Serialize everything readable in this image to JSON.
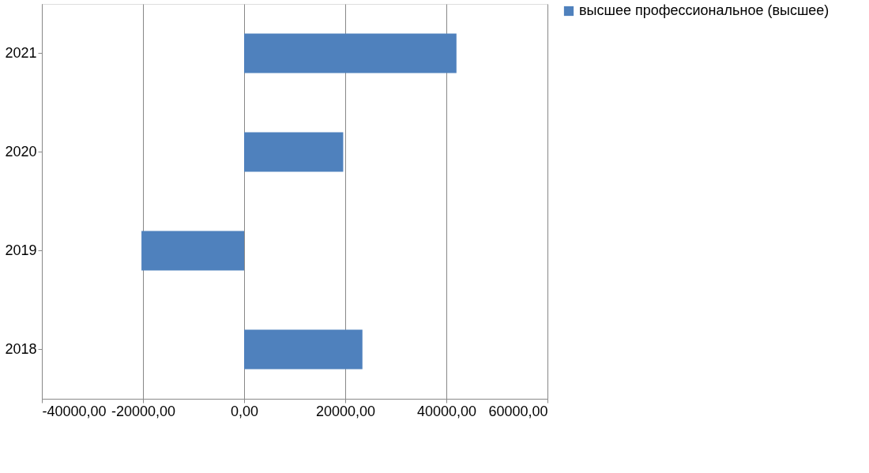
{
  "chart_data": {
    "type": "bar",
    "orientation": "horizontal",
    "categories": [
      "2021",
      "2020",
      "2019",
      "2018"
    ],
    "series": [
      {
        "name": "высшее профессиональное (высшее)",
        "color": "#4f81bd",
        "values": [
          42000,
          19600,
          -20300,
          23400
        ]
      }
    ],
    "xlim": [
      -40000,
      60000
    ],
    "xticks": [
      {
        "value": -40000,
        "label": "-40000,00"
      },
      {
        "value": -20000,
        "label": "-20000,00"
      },
      {
        "value": 0,
        "label": "0,00"
      },
      {
        "value": 20000,
        "label": "20000,00"
      },
      {
        "value": 40000,
        "label": "40000,00"
      },
      {
        "value": 60000,
        "label": "60000,00"
      }
    ],
    "grid": "x",
    "legend": "right"
  }
}
